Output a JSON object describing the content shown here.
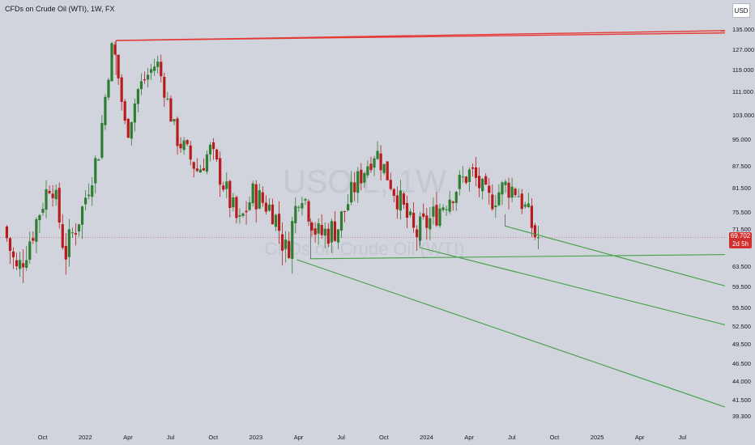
{
  "header": {
    "title": "CFDs on Crude Oil (WTI), 1W, FX",
    "currency": "USD"
  },
  "watermark": {
    "symbol": "USOIL, 1W",
    "name": "CFDs on Crude Oil (WTI)"
  },
  "price_tag": {
    "value": "69.702",
    "countdown": "2d 5h"
  },
  "colors": {
    "background": "#d1d4dc",
    "up": "#2e7d32",
    "down": "#b71c1c",
    "resistance": "#e53935",
    "support": "#43a047",
    "price_line": "#c62828"
  },
  "chart_data": {
    "type": "candlestick",
    "title": "CFDs on Crude Oil (WTI), 1W, FX",
    "currency": "USD",
    "timeframe": "1W",
    "x_ticks": [
      {
        "t": 2021.75,
        "label": "Oct"
      },
      {
        "t": 2022.0,
        "label": "2022"
      },
      {
        "t": 2022.25,
        "label": "Apr"
      },
      {
        "t": 2022.5,
        "label": "Jul"
      },
      {
        "t": 2022.75,
        "label": "Oct"
      },
      {
        "t": 2023.0,
        "label": "2023"
      },
      {
        "t": 2023.25,
        "label": "Apr"
      },
      {
        "t": 2023.5,
        "label": "Jul"
      },
      {
        "t": 2023.75,
        "label": "Oct"
      },
      {
        "t": 2024.0,
        "label": "2024"
      },
      {
        "t": 2024.25,
        "label": "Apr"
      },
      {
        "t": 2024.5,
        "label": "Jul"
      },
      {
        "t": 2024.75,
        "label": "Oct"
      },
      {
        "t": 2025.0,
        "label": "2025"
      },
      {
        "t": 2025.25,
        "label": "Apr"
      },
      {
        "t": 2025.5,
        "label": "Jul"
      }
    ],
    "y_ticks": [
      "135.000",
      "127.000",
      "119.000",
      "111.000",
      "103.000",
      "95.000",
      "87.500",
      "81.500",
      "75.500",
      "71.500",
      "63.500",
      "59.500",
      "55.500",
      "52.500",
      "49.500",
      "46.500",
      "44.000",
      "41.500",
      "39.300"
    ],
    "last_price": 69.702,
    "anchors": [
      {
        "t": 2021.54,
        "p": 72
      },
      {
        "t": 2021.62,
        "p": 62
      },
      {
        "t": 2021.72,
        "p": 72
      },
      {
        "t": 2021.82,
        "p": 84
      },
      {
        "t": 2021.9,
        "p": 66
      },
      {
        "t": 2022.0,
        "p": 76
      },
      {
        "t": 2022.1,
        "p": 92
      },
      {
        "t": 2022.18,
        "p": 130
      },
      {
        "t": 2022.26,
        "p": 96
      },
      {
        "t": 2022.33,
        "p": 112
      },
      {
        "t": 2022.44,
        "p": 122
      },
      {
        "t": 2022.55,
        "p": 96
      },
      {
        "t": 2022.68,
        "p": 86
      },
      {
        "t": 2022.75,
        "p": 92
      },
      {
        "t": 2022.85,
        "p": 80
      },
      {
        "t": 2022.92,
        "p": 72
      },
      {
        "t": 2023.0,
        "p": 80
      },
      {
        "t": 2023.12,
        "p": 76
      },
      {
        "t": 2023.2,
        "p": 66
      },
      {
        "t": 2023.28,
        "p": 82
      },
      {
        "t": 2023.38,
        "p": 70
      },
      {
        "t": 2023.5,
        "p": 72
      },
      {
        "t": 2023.6,
        "p": 82
      },
      {
        "t": 2023.72,
        "p": 92
      },
      {
        "t": 2023.82,
        "p": 82
      },
      {
        "t": 2023.95,
        "p": 70
      },
      {
        "t": 2024.05,
        "p": 74
      },
      {
        "t": 2024.18,
        "p": 81
      },
      {
        "t": 2024.28,
        "p": 86
      },
      {
        "t": 2024.38,
        "p": 78
      },
      {
        "t": 2024.48,
        "p": 82
      },
      {
        "t": 2024.55,
        "p": 81
      },
      {
        "t": 2024.63,
        "p": 73
      },
      {
        "t": 2024.66,
        "p": 69.702
      }
    ],
    "trendlines": [
      {
        "color": "red",
        "from": {
          "t": 2022.18,
          "p": 130.5
        },
        "to": {
          "t": 2025.75,
          "p": 136.5
        }
      },
      {
        "color": "red",
        "from": {
          "t": 2022.18,
          "p": 130.5
        },
        "to": {
          "t": 2025.75,
          "p": 135.6
        }
      },
      {
        "color": "green",
        "from": {
          "t": 2023.24,
          "p": 64.9
        },
        "to": {
          "t": 2025.75,
          "p": 40.5
        }
      },
      {
        "color": "green",
        "from": {
          "t": 2023.32,
          "p": 65.1
        },
        "to": {
          "t": 2025.75,
          "p": 66.0
        }
      },
      {
        "color": "green",
        "from": {
          "t": 2023.96,
          "p": 67.5
        },
        "to": {
          "t": 2025.75,
          "p": 52.7
        }
      },
      {
        "color": "green",
        "from": {
          "t": 2024.46,
          "p": 72.2
        },
        "to": {
          "t": 2025.75,
          "p": 59.6
        }
      }
    ]
  }
}
